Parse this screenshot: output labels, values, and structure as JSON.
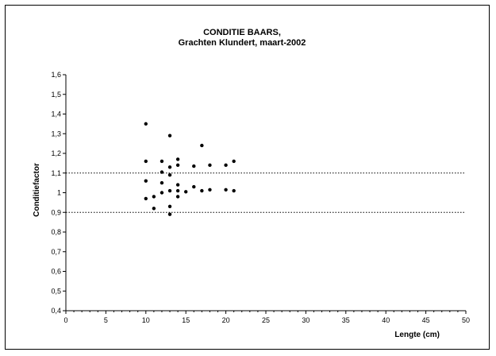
{
  "chart_data": {
    "type": "scatter",
    "title": "CONDITIE BAARS,",
    "subtitle": "Grachten Klundert,  maart-2002",
    "xlabel": "Lengte (cm)",
    "ylabel": "Conditiefactor",
    "xlim": [
      0,
      50
    ],
    "ylim": [
      0.4,
      1.6
    ],
    "xticks": [
      "0",
      "5",
      "10",
      "15",
      "20",
      "25",
      "30",
      "35",
      "40",
      "45",
      "50"
    ],
    "yticks": [
      "0,4",
      "0,5",
      "0,6",
      "0,7",
      "0,8",
      "0,9",
      "1",
      "1,1",
      "1,2",
      "1,3",
      "1,4",
      "1,5",
      "1,6"
    ],
    "reference_lines": [
      0.9,
      1.1
    ],
    "grid": false,
    "points": [
      {
        "x": 10,
        "y": 1.35
      },
      {
        "x": 10,
        "y": 1.16
      },
      {
        "x": 10,
        "y": 1.06
      },
      {
        "x": 10,
        "y": 0.97
      },
      {
        "x": 11,
        "y": 0.98
      },
      {
        "x": 11,
        "y": 0.92
      },
      {
        "x": 12,
        "y": 1.16
      },
      {
        "x": 12,
        "y": 1.105
      },
      {
        "x": 12,
        "y": 1.05
      },
      {
        "x": 12,
        "y": 1.0
      },
      {
        "x": 13,
        "y": 1.29
      },
      {
        "x": 13,
        "y": 1.13
      },
      {
        "x": 13,
        "y": 1.09
      },
      {
        "x": 13,
        "y": 1.01
      },
      {
        "x": 13,
        "y": 0.93
      },
      {
        "x": 13,
        "y": 0.89
      },
      {
        "x": 14,
        "y": 1.17
      },
      {
        "x": 14,
        "y": 1.14
      },
      {
        "x": 14,
        "y": 1.04
      },
      {
        "x": 14,
        "y": 1.01
      },
      {
        "x": 14,
        "y": 0.98
      },
      {
        "x": 15,
        "y": 1.005
      },
      {
        "x": 16,
        "y": 1.135
      },
      {
        "x": 16,
        "y": 1.03
      },
      {
        "x": 17,
        "y": 1.24
      },
      {
        "x": 17,
        "y": 1.01
      },
      {
        "x": 18,
        "y": 1.14
      },
      {
        "x": 18,
        "y": 1.015
      },
      {
        "x": 20,
        "y": 1.14
      },
      {
        "x": 20,
        "y": 1.015
      },
      {
        "x": 21,
        "y": 1.16
      },
      {
        "x": 21,
        "y": 1.01
      }
    ]
  }
}
